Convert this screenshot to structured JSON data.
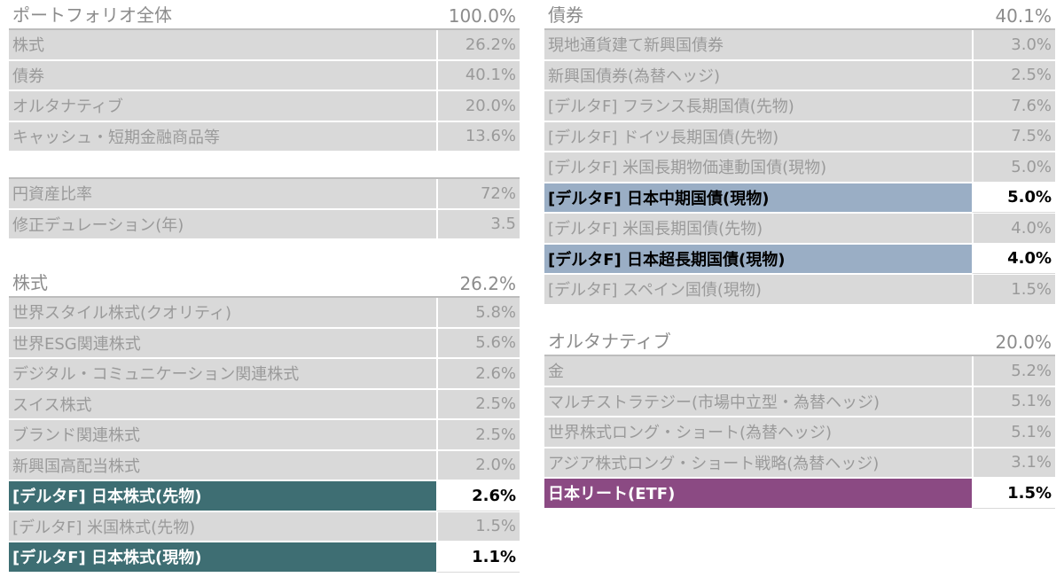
{
  "portfolio": {
    "title": "ポートフォリオ全体",
    "total": "100.0%",
    "rows": [
      {
        "label": "株式",
        "value": "26.2%"
      },
      {
        "label": "債券",
        "value": "40.1%"
      },
      {
        "label": "オルタナティブ",
        "value": "20.0%"
      },
      {
        "label": "キャッシュ・短期金融商品等",
        "value": "13.6%"
      }
    ]
  },
  "metrics": {
    "rows": [
      {
        "label": "円資産比率",
        "value": "72%"
      },
      {
        "label": "修正デュレーション(年)",
        "value": "3.5"
      }
    ]
  },
  "equity": {
    "title": "株式",
    "total": "26.2%",
    "rows": [
      {
        "label": "世界スタイル株式(クオリティ)",
        "value": "5.8%"
      },
      {
        "label": "世界ESG関連株式",
        "value": "5.6%"
      },
      {
        "label": "デジタル・コミュニケーション関連株式",
        "value": "2.6%"
      },
      {
        "label": "スイス株式",
        "value": "2.5%"
      },
      {
        "label": "ブランド関連株式",
        "value": "2.5%"
      },
      {
        "label": "新興国高配当株式",
        "value": "2.0%"
      },
      {
        "label": "[デルタF] 日本株式(先物)",
        "value": "2.6%"
      },
      {
        "label": "[デルタF] 米国株式(先物)",
        "value": "1.5%"
      },
      {
        "label": "[デルタF] 日本株式(現物)",
        "value": "1.1%"
      }
    ]
  },
  "bonds": {
    "title": "債券",
    "total": "40.1%",
    "rows": [
      {
        "label": "現地通貨建て新興国債券",
        "value": "3.0%"
      },
      {
        "label": "新興国債券(為替ヘッジ)",
        "value": "2.5%"
      },
      {
        "label": "[デルタF] フランス長期国債(先物)",
        "value": "7.6%"
      },
      {
        "label": "[デルタF] ドイツ長期国債(先物)",
        "value": "7.5%"
      },
      {
        "label": "[デルタF] 米国長期物価連動国債(現物)",
        "value": "5.0%"
      },
      {
        "label": "[デルタF] 日本中期国債(現物)",
        "value": "5.0%"
      },
      {
        "label": "[デルタF] 米国長期国債(先物)",
        "value": "4.0%"
      },
      {
        "label": "[デルタF] 日本超長期国債(現物)",
        "value": "4.0%"
      },
      {
        "label": "[デルタF] スペイン国債(現物)",
        "value": "1.5%"
      }
    ]
  },
  "alternative": {
    "title": "オルタナティブ",
    "total": "20.0%",
    "rows": [
      {
        "label": "金",
        "value": "5.2%"
      },
      {
        "label": "マルチストラテジー(市場中立型・為替ヘッジ)",
        "value": "5.1%"
      },
      {
        "label": "世界株式ロング・ショート(為替ヘッジ)",
        "value": "5.1%"
      },
      {
        "label": "アジア株式ロング・ショート戦略(為替ヘッジ)",
        "value": "3.1%"
      },
      {
        "label": "日本リート(ETF)",
        "value": "1.5%"
      }
    ]
  },
  "colors": {
    "teal": "#3e6e73",
    "blue": "#9aaec5",
    "purple": "#8b4a83",
    "gray": "#d9d9d9"
  }
}
